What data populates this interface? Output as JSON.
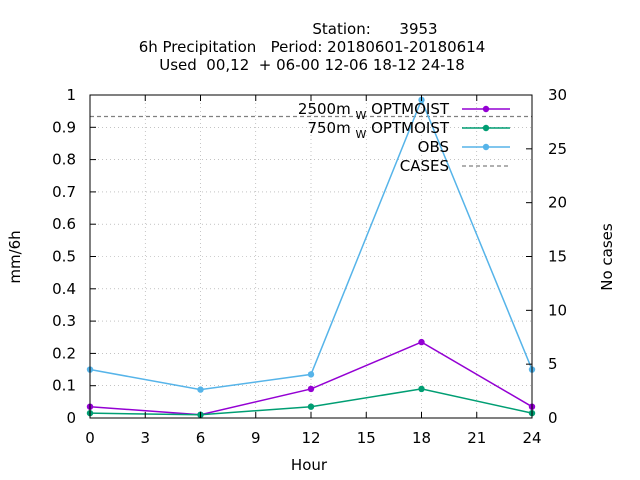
{
  "chart_data": {
    "type": "line",
    "title_lines": [
      "Station:      3953",
      "6h Precipitation   Period: 20180601-20180614",
      "Used  00,12  + 06-00 12-06 18-12 24-18"
    ],
    "xlabel": "Hour",
    "ylabel": "mm/6h",
    "y2label": "No cases",
    "xlim": [
      0,
      24
    ],
    "ylim": [
      0,
      1
    ],
    "y2lim": [
      0,
      30
    ],
    "x_ticks": [
      "0",
      "3",
      "6",
      "9",
      "12",
      "15",
      "18",
      "21",
      "24"
    ],
    "y_ticks": [
      "0",
      "0.1",
      "0.2",
      "0.3",
      "0.4",
      "0.5",
      "0.6",
      "0.7",
      "0.8",
      "0.9",
      "1"
    ],
    "y2_ticks": [
      "0",
      "5",
      "10",
      "15",
      "20",
      "25",
      "30"
    ],
    "grid": true,
    "legend_position": "top-right",
    "x": [
      0,
      6,
      12,
      18,
      24
    ],
    "series": [
      {
        "name": "2500m",
        "name_sub": "W",
        "name_suffix": "OPTMOIST",
        "color": "#9400d3",
        "values": [
          0.035,
          0.01,
          0.09,
          0.235,
          0.035
        ]
      },
      {
        "name": "750m",
        "name_sub": "W",
        "name_suffix": "OPTMOIST",
        "color": "#009e73",
        "values": [
          0.015,
          0.01,
          0.035,
          0.09,
          0.015
        ]
      },
      {
        "name": "OBS",
        "color": "#56b4e9",
        "values": [
          0.15,
          0.088,
          0.135,
          0.985,
          0.15
        ]
      }
    ],
    "cases": {
      "name": "CASES",
      "color": "#808080",
      "value": 28
    }
  }
}
